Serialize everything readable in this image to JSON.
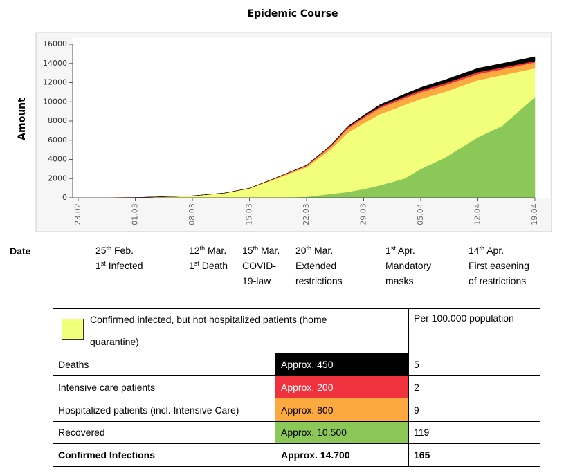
{
  "chart_data": {
    "type": "stacked-area",
    "title": "Epidemic Course",
    "y_label": "Amount",
    "x": [
      0,
      7,
      14,
      18,
      21,
      24,
      28,
      31,
      33,
      35,
      37,
      40,
      42,
      45,
      49,
      52,
      56
    ],
    "xlim": [
      0,
      56
    ],
    "xticks": [
      {
        "value": 0,
        "label": "23.02"
      },
      {
        "value": 7,
        "label": "01.03"
      },
      {
        "value": 14,
        "label": "08.03"
      },
      {
        "value": 21,
        "label": "15.03"
      },
      {
        "value": 28,
        "label": "22.03"
      },
      {
        "value": 35,
        "label": "29.03"
      },
      {
        "value": 42,
        "label": "05.04"
      },
      {
        "value": 49,
        "label": "12.04"
      },
      {
        "value": 56,
        "label": "19.04"
      }
    ],
    "ylim": [
      0,
      16000
    ],
    "yticks": [
      0,
      2000,
      4000,
      6000,
      8000,
      10000,
      12000,
      14000,
      16000
    ],
    "series": [
      {
        "color": "#8cc858",
        "values": [
          0,
          0,
          0,
          0,
          0,
          10,
          100,
          400,
          600,
          900,
          1300,
          2000,
          3000,
          4200,
          6300,
          7500,
          10500
        ]
      },
      {
        "color": "#f2ff7a",
        "values": [
          0,
          30,
          200,
          490,
          960,
          1875,
          3070,
          4650,
          6130,
          6870,
          7400,
          7670,
          7310,
          6850,
          5950,
          5280,
          3000
        ]
      },
      {
        "color": "#fca940",
        "values": [
          0,
          0,
          0,
          10,
          30,
          80,
          150,
          300,
          450,
          550,
          650,
          700,
          700,
          700,
          650,
          620,
          600
        ]
      },
      {
        "color": "#f0313e",
        "values": [
          0,
          0,
          0,
          0,
          10,
          30,
          60,
          100,
          130,
          150,
          170,
          180,
          190,
          200,
          200,
          180,
          150
        ]
      },
      {
        "color": "#000000",
        "values": [
          0,
          0,
          0,
          0,
          0,
          5,
          20,
          50,
          90,
          130,
          180,
          250,
          300,
          350,
          400,
          420,
          450
        ]
      }
    ]
  },
  "date_label": "Date",
  "events": [
    [
      [
        {
          "t": "25"
        },
        {
          "sup": "th"
        },
        {
          "t": " Feb."
        }
      ],
      [
        {
          "t": "1"
        },
        {
          "sup": "st"
        },
        {
          "t": " Infected"
        }
      ]
    ],
    [
      [
        {
          "t": "12"
        },
        {
          "sup": "th"
        },
        {
          "t": " Mar."
        }
      ],
      [
        {
          "t": "1"
        },
        {
          "sup": "st"
        },
        {
          "t": " Death"
        }
      ]
    ],
    [
      [
        {
          "t": "15"
        },
        {
          "sup": "th"
        },
        {
          "t": " Mar."
        }
      ],
      [
        {
          "t": "COVID-"
        }
      ],
      [
        {
          "t": "19-law"
        }
      ]
    ],
    [
      [
        {
          "t": "20"
        },
        {
          "sup": "th"
        },
        {
          "t": " Mar."
        }
      ],
      [
        {
          "t": "Extended"
        }
      ],
      [
        {
          "t": "restrictions"
        }
      ]
    ],
    [
      [
        {
          "t": "1"
        },
        {
          "sup": "st"
        },
        {
          "t": " Apr."
        }
      ],
      [
        {
          "t": "Mandatory"
        }
      ],
      [
        {
          "t": "masks"
        }
      ]
    ],
    [
      [
        {
          "t": "14"
        },
        {
          "sup": "th"
        },
        {
          "t": " Apr."
        }
      ],
      [
        {
          "t": "First easening"
        }
      ],
      [
        {
          "t": "of restrictions"
        }
      ]
    ]
  ],
  "table": {
    "header": {
      "label": "Confirmed infected, but not hospitalized patients (home quarantine)",
      "color": "#f2ff7a",
      "per": "Per 100.000 population"
    },
    "rows": [
      {
        "label": "Deaths",
        "approx": "Approx. 450",
        "per": "5",
        "color": "#000000",
        "text_color": "#ffffff"
      },
      {
        "label": "Intensive care patients",
        "approx": "Approx. 200",
        "per": "2",
        "color": "#f0313e",
        "text_color": "#ffffff"
      },
      {
        "label": "Hospitalized patients (incl. Intensive Care)",
        "approx": "Approx. 800",
        "per": "9",
        "color": "#fca940",
        "text_color": "#000000"
      },
      {
        "label": "Recovered",
        "approx": "Approx. 10.500",
        "per": "119",
        "color": "#8cc858",
        "text_color": "#000000"
      },
      {
        "label": "Confirmed Infections",
        "approx": "Approx. 14.700",
        "per": "165",
        "bold": true
      }
    ]
  }
}
